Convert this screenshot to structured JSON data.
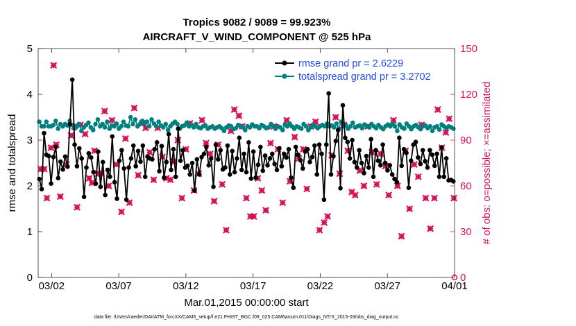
{
  "chart_data": {
    "type": "line",
    "title": "Tropics 9082 / 9089 = 99.923%",
    "subtitle": "AIRCRAFT_V_WIND_COMPONENT @ 525 hPa",
    "xlabel": "Mar.01,2015 00:00:00 start",
    "ylabel_left": "rmse and totalspread",
    "ylabel_right": "# of obs: o=possible; ×=assimilated",
    "footer": "data file: /Users/raeder/DAI/ATM_forcXX/CAM6_setup/f.e21.FHIST_BGC.f09_025.CAM6assim.011/Diags_NTrS_2015-03/obs_diag_output.nc",
    "x_ticks": [
      "03/02",
      "03/07",
      "03/12",
      "03/17",
      "03/22",
      "03/27",
      "04/01"
    ],
    "x_tick_days": [
      1,
      6,
      11,
      16,
      21,
      26,
      31
    ],
    "xlim_days": [
      0,
      31
    ],
    "ylim_left": [
      0,
      5
    ],
    "yticks_left": [
      "0",
      "1",
      "2",
      "3",
      "4",
      "5"
    ],
    "ylim_right": [
      0,
      150
    ],
    "yticks_right": [
      "0",
      "30",
      "60",
      "90",
      "120",
      "150"
    ],
    "colors": {
      "rmse": "#000000",
      "spread": "#007f7f",
      "obs": "#d6135a",
      "legend_text": "#1f4fe0"
    },
    "series": [
      {
        "name": "rmse grand pr = 2.6229",
        "key": "rmse",
        "axis": "left",
        "values": [
          2.15,
          1.93,
          3.15,
          2.68,
          2.65,
          2.05,
          2.63,
          2.85,
          2.17,
          2.53,
          2.36,
          2.64,
          2.42,
          3.35,
          4.32,
          2.9,
          2.43,
          2.82,
          2.6,
          1.76,
          2.4,
          2.71,
          2.62,
          2.3,
          2.05,
          2.75,
          1.98,
          2.52,
          1.8,
          2.35,
          2.2,
          3.08,
          2.08,
          1.72,
          2.55,
          2.78,
          2.38,
          1.7,
          2.4,
          2.6,
          2.88,
          2.43,
          2.76,
          2.53,
          2.88,
          2.2,
          2.64,
          2.6,
          2.58,
          2.8,
          2.95,
          2.32,
          2.87,
          2.18,
          2.52,
          3.13,
          2.35,
          2.8,
          2.2,
          3.25,
          2.55,
          2.78,
          2.4,
          2.44,
          2.25,
          2.5,
          1.9,
          2.58,
          2.25,
          2.63,
          2.7,
          2.85,
          2.45,
          2.6,
          1.98,
          2.9,
          2.58,
          2.78,
          2.36,
          2.4,
          2.88,
          2.25,
          2.76,
          2.3,
          2.6,
          3.05,
          2.35,
          2.7,
          2.3,
          2.95,
          2.16,
          2.75,
          2.18,
          2.46,
          2.85,
          2.33,
          2.66,
          2.45,
          2.6,
          2.7,
          2.48,
          2.35,
          2.82,
          2.43,
          2.7,
          2.62,
          2.8,
          2.18,
          1.96,
          2.85,
          2.68,
          2.56,
          2.38,
          2.75,
          2.8,
          2.52,
          2.63,
          2.88,
          2.25,
          2.9,
          2.7,
          1.7,
          2.9,
          4.02,
          2.25,
          2.65,
          2.98,
          3.22,
          1.95,
          3.76,
          3.05,
          2.96,
          2.6,
          3.0,
          2.52,
          2.4,
          2.78,
          2.5,
          2.28,
          2.65,
          2.4,
          3.02,
          2.2,
          2.78,
          2.55,
          2.45,
          2.9,
          2.5,
          2.34,
          2.45,
          2.25,
          2.15,
          2.08,
          3.05,
          2.44,
          2.8,
          2.72,
          1.96,
          2.55,
          2.9,
          2.96,
          2.62,
          2.48,
          2.78,
          2.54,
          2.4,
          2.78,
          2.68,
          2.44,
          2.7,
          2.2,
          2.84,
          2.2,
          2.6,
          2.12,
          2.13,
          2.1
        ]
      },
      {
        "name": "totalspread grand pr = 3.2702",
        "key": "spread",
        "axis": "left",
        "values": [
          3.4,
          3.3,
          3.3,
          3.4,
          3.3,
          3.3,
          3.33,
          3.42,
          3.25,
          3.35,
          3.3,
          3.35,
          3.32,
          3.42,
          3.33,
          3.25,
          3.3,
          3.35,
          3.2,
          3.28,
          3.33,
          3.38,
          3.28,
          3.22,
          3.35,
          3.45,
          3.3,
          3.35,
          3.28,
          3.4,
          3.25,
          3.32,
          3.3,
          3.36,
          3.25,
          3.3,
          3.4,
          3.32,
          3.3,
          3.5,
          3.35,
          3.45,
          3.3,
          3.35,
          3.42,
          3.36,
          3.4,
          3.3,
          3.45,
          3.36,
          3.3,
          3.4,
          3.32,
          3.28,
          3.35,
          3.22,
          3.3,
          3.36,
          3.4,
          3.35,
          3.25,
          3.3,
          3.32,
          3.38,
          3.3,
          3.34,
          3.28,
          3.35,
          3.28,
          3.26,
          3.3,
          3.32,
          3.25,
          3.28,
          3.3,
          3.25,
          3.28,
          3.3,
          3.26,
          3.2,
          3.28,
          3.32,
          3.3,
          3.24,
          3.26,
          3.33,
          3.3,
          3.28,
          3.22,
          3.3,
          3.28,
          3.34,
          3.3,
          3.3,
          3.26,
          3.33,
          3.3,
          3.26,
          3.28,
          3.35,
          3.3,
          3.25,
          3.3,
          3.28,
          3.22,
          3.34,
          3.3,
          3.36,
          3.3,
          3.25,
          3.3,
          3.28,
          3.25,
          3.35,
          3.3,
          3.22,
          3.28,
          3.34,
          3.3,
          3.26,
          3.3,
          3.33,
          3.3,
          3.36,
          3.3,
          3.32,
          3.28,
          3.36,
          3.25,
          3.4,
          3.3,
          3.33,
          3.25,
          3.3,
          3.38,
          3.28,
          3.3,
          3.32,
          3.26,
          3.34,
          3.3,
          3.28,
          3.35,
          3.3,
          3.26,
          3.33,
          3.28,
          3.24,
          3.3,
          3.34,
          3.3,
          3.36,
          3.3,
          3.2,
          3.34,
          3.28,
          3.25,
          3.36,
          3.3,
          3.24,
          3.3,
          3.33,
          3.28,
          3.24,
          3.3,
          3.32,
          3.26,
          3.3,
          3.2,
          3.28,
          3.3,
          3.23,
          3.34,
          3.3,
          3.26,
          3.3,
          3.28,
          3.25
        ]
      },
      {
        "name": "obs assimilated",
        "key": "obs",
        "axis": "right",
        "points": [
          [
            0.2,
            71
          ],
          [
            0.45,
            71
          ],
          [
            0.65,
            52
          ],
          [
            0.95,
            85
          ],
          [
            1.15,
            139
          ],
          [
            1.35,
            87
          ],
          [
            1.65,
            53
          ],
          [
            2.1,
            74
          ],
          [
            2.45,
            93
          ],
          [
            2.7,
            99
          ],
          [
            2.9,
            46
          ],
          [
            3.15,
            100
          ],
          [
            3.5,
            94
          ],
          [
            3.8,
            65
          ],
          [
            4.0,
            62
          ],
          [
            4.2,
            83
          ],
          [
            4.45,
            68
          ],
          [
            4.7,
            68
          ],
          [
            4.95,
            109
          ],
          [
            5.25,
            60
          ],
          [
            5.5,
            103
          ],
          [
            5.85,
            74
          ],
          [
            6.2,
            43
          ],
          [
            6.5,
            91
          ],
          [
            6.8,
            49
          ],
          [
            7.15,
            111
          ],
          [
            7.45,
            67
          ],
          [
            7.75,
            101
          ],
          [
            8.0,
            98
          ],
          [
            8.3,
            82
          ],
          [
            8.6,
            64
          ],
          [
            8.9,
            98
          ],
          [
            9.25,
            79
          ],
          [
            9.55,
            65
          ],
          [
            9.85,
            64
          ],
          [
            10.1,
            76
          ],
          [
            10.4,
            90
          ],
          [
            10.7,
            52
          ],
          [
            11.0,
            84
          ],
          [
            11.3,
            101
          ],
          [
            11.6,
            57
          ],
          [
            11.95,
            68
          ],
          [
            12.2,
            103
          ],
          [
            12.5,
            88
          ],
          [
            12.8,
            81
          ],
          [
            13.1,
            50
          ],
          [
            13.4,
            87
          ],
          [
            13.7,
            61
          ],
          [
            14.0,
            31
          ],
          [
            14.35,
            96
          ],
          [
            14.6,
            110
          ],
          [
            14.95,
            106
          ],
          [
            15.2,
            99
          ],
          [
            15.5,
            52
          ],
          [
            15.8,
            40
          ],
          [
            16.05,
            40
          ],
          [
            16.35,
            65
          ],
          [
            16.65,
            57
          ],
          [
            16.95,
            44
          ],
          [
            17.3,
            88
          ],
          [
            17.55,
            99
          ],
          [
            17.85,
            84
          ],
          [
            18.2,
            49
          ],
          [
            18.5,
            103
          ],
          [
            18.75,
            63
          ],
          [
            19.1,
            92
          ],
          [
            19.4,
            78
          ],
          [
            19.75,
            84
          ],
          [
            20.0,
            58
          ],
          [
            20.3,
            99
          ],
          [
            20.65,
            102
          ],
          [
            20.95,
            31
          ],
          [
            21.3,
            36
          ],
          [
            21.55,
            40
          ],
          [
            21.85,
            80
          ],
          [
            22.15,
            105
          ],
          [
            22.45,
            68
          ],
          [
            22.75,
            100
          ],
          [
            23.05,
            83
          ],
          [
            23.35,
            56
          ],
          [
            23.6,
            54
          ],
          [
            23.95,
            70
          ],
          [
            24.25,
            60
          ],
          [
            24.55,
            99
          ],
          [
            24.85,
            82
          ],
          [
            25.2,
            61
          ],
          [
            25.5,
            81
          ],
          [
            25.85,
            73
          ],
          [
            26.1,
            54
          ],
          [
            26.45,
            103
          ],
          [
            26.75,
            60
          ],
          [
            27.05,
            27
          ],
          [
            27.35,
            83
          ],
          [
            27.65,
            45
          ],
          [
            28.0,
            74
          ],
          [
            28.3,
            66
          ],
          [
            28.55,
            100
          ],
          [
            28.85,
            52
          ],
          [
            29.2,
            32
          ],
          [
            29.5,
            52
          ],
          [
            29.75,
            110
          ],
          [
            30.05,
            85
          ],
          [
            30.35,
            95
          ],
          [
            30.6,
            104
          ],
          [
            30.95,
            52
          ]
        ]
      }
    ]
  }
}
